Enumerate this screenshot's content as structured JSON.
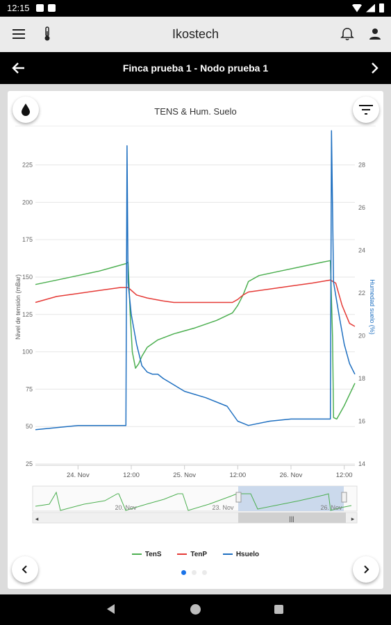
{
  "status": {
    "time": "12:15"
  },
  "app": {
    "title": "Ikostech"
  },
  "subheader": {
    "title": "Finca prueba 1 - Nodo prueba 1"
  },
  "icons": {
    "menu": "menu-icon",
    "thermometer": "thermometer-icon",
    "bell": "bell-icon",
    "user": "user-icon",
    "back": "arrow-left-icon",
    "forward": "chevron-right-icon",
    "drop": "water-drop-icon",
    "filter": "filter-icon"
  },
  "colors": {
    "tens": "#4caf50",
    "tenp": "#e53935",
    "hsuelo": "#1e6fc0",
    "navigator_selection": "#c5d5ea"
  },
  "chart_data": {
    "type": "line",
    "title": "TENS & Hum. Suelo",
    "ylabel_left": "Nivel de tensión (mBar)",
    "ylabel_right": "Humedad suelo (%)",
    "ylim_left": [
      25,
      235
    ],
    "ylim_right": [
      14,
      28.7
    ],
    "y_ticks_left": [
      25,
      50,
      75,
      100,
      125,
      150,
      175,
      200,
      225
    ],
    "y_ticks_right": [
      14,
      16,
      18,
      20,
      22,
      24,
      26,
      28
    ],
    "x_ticks": [
      "24. Nov",
      "12:00",
      "25. Nov",
      "12:00",
      "26. Nov",
      "12:00"
    ],
    "x_tick_pos": [
      0.5,
      1,
      1.5,
      2,
      2.5,
      3
    ],
    "xlim": [
      0.1,
      3.1
    ],
    "grid": true,
    "legend_position": "bottom",
    "series": [
      {
        "name": "TenS",
        "axis": "left",
        "color": "#4caf50",
        "points": [
          [
            0.1,
            145
          ],
          [
            0.3,
            148
          ],
          [
            0.5,
            151
          ],
          [
            0.7,
            154
          ],
          [
            0.85,
            157
          ],
          [
            0.95,
            159
          ],
          [
            0.97,
            160
          ],
          [
            0.99,
            125
          ],
          [
            1.01,
            100
          ],
          [
            1.04,
            89
          ],
          [
            1.07,
            92
          ],
          [
            1.1,
            97
          ],
          [
            1.15,
            103
          ],
          [
            1.25,
            108
          ],
          [
            1.4,
            112
          ],
          [
            1.6,
            116
          ],
          [
            1.8,
            121
          ],
          [
            1.95,
            126
          ],
          [
            2.0,
            131
          ],
          [
            2.05,
            138
          ],
          [
            2.1,
            147
          ],
          [
            2.2,
            151
          ],
          [
            2.4,
            154
          ],
          [
            2.6,
            157
          ],
          [
            2.8,
            160
          ],
          [
            2.87,
            161
          ],
          [
            2.89,
            110
          ],
          [
            2.9,
            56
          ],
          [
            2.93,
            55
          ],
          [
            3.0,
            64
          ],
          [
            3.1,
            79
          ]
        ]
      },
      {
        "name": "TenP",
        "axis": "left",
        "color": "#e53935",
        "points": [
          [
            0.1,
            133
          ],
          [
            0.3,
            137
          ],
          [
            0.5,
            139
          ],
          [
            0.7,
            141
          ],
          [
            0.9,
            143
          ],
          [
            0.97,
            143
          ],
          [
            1.05,
            138
          ],
          [
            1.15,
            136
          ],
          [
            1.3,
            134
          ],
          [
            1.4,
            133
          ],
          [
            1.6,
            133
          ],
          [
            1.8,
            133
          ],
          [
            1.95,
            133
          ],
          [
            2.0,
            135
          ],
          [
            2.05,
            138
          ],
          [
            2.1,
            140
          ],
          [
            2.3,
            142
          ],
          [
            2.5,
            144
          ],
          [
            2.7,
            146
          ],
          [
            2.87,
            148
          ],
          [
            2.92,
            146
          ],
          [
            2.98,
            131
          ],
          [
            3.05,
            119
          ],
          [
            3.1,
            117
          ]
        ]
      },
      {
        "name": "Hsuelo",
        "axis": "right",
        "color": "#1e6fc0",
        "points": [
          [
            0.1,
            15.6
          ],
          [
            0.3,
            15.7
          ],
          [
            0.5,
            15.8
          ],
          [
            0.7,
            15.8
          ],
          [
            0.9,
            15.8
          ],
          [
            0.95,
            15.8
          ],
          [
            0.96,
            28.9
          ],
          [
            0.97,
            22.5
          ],
          [
            1.0,
            21.0
          ],
          [
            1.05,
            19.6
          ],
          [
            1.1,
            18.6
          ],
          [
            1.15,
            18.3
          ],
          [
            1.2,
            18.2
          ],
          [
            1.25,
            18.2
          ],
          [
            1.3,
            18.0
          ],
          [
            1.5,
            17.4
          ],
          [
            1.7,
            17.1
          ],
          [
            1.9,
            16.7
          ],
          [
            2.0,
            16.0
          ],
          [
            2.05,
            15.9
          ],
          [
            2.1,
            15.8
          ],
          [
            2.3,
            16.0
          ],
          [
            2.5,
            16.1
          ],
          [
            2.7,
            16.1
          ],
          [
            2.87,
            16.1
          ],
          [
            2.88,
            29.6
          ],
          [
            2.9,
            22.5
          ],
          [
            2.95,
            21.0
          ],
          [
            3.0,
            19.6
          ],
          [
            3.05,
            18.7
          ],
          [
            3.1,
            18.2
          ]
        ]
      }
    ]
  },
  "navigator": {
    "ticks": [
      "20. Nov",
      "23. Nov",
      "26. Nov"
    ]
  },
  "legend": [
    {
      "label": "TenS",
      "color": "#4caf50"
    },
    {
      "label": "TenP",
      "color": "#e53935"
    },
    {
      "label": "Hsuelo",
      "color": "#1e6fc0"
    }
  ],
  "pager": {
    "pages": 3,
    "active": 1
  }
}
